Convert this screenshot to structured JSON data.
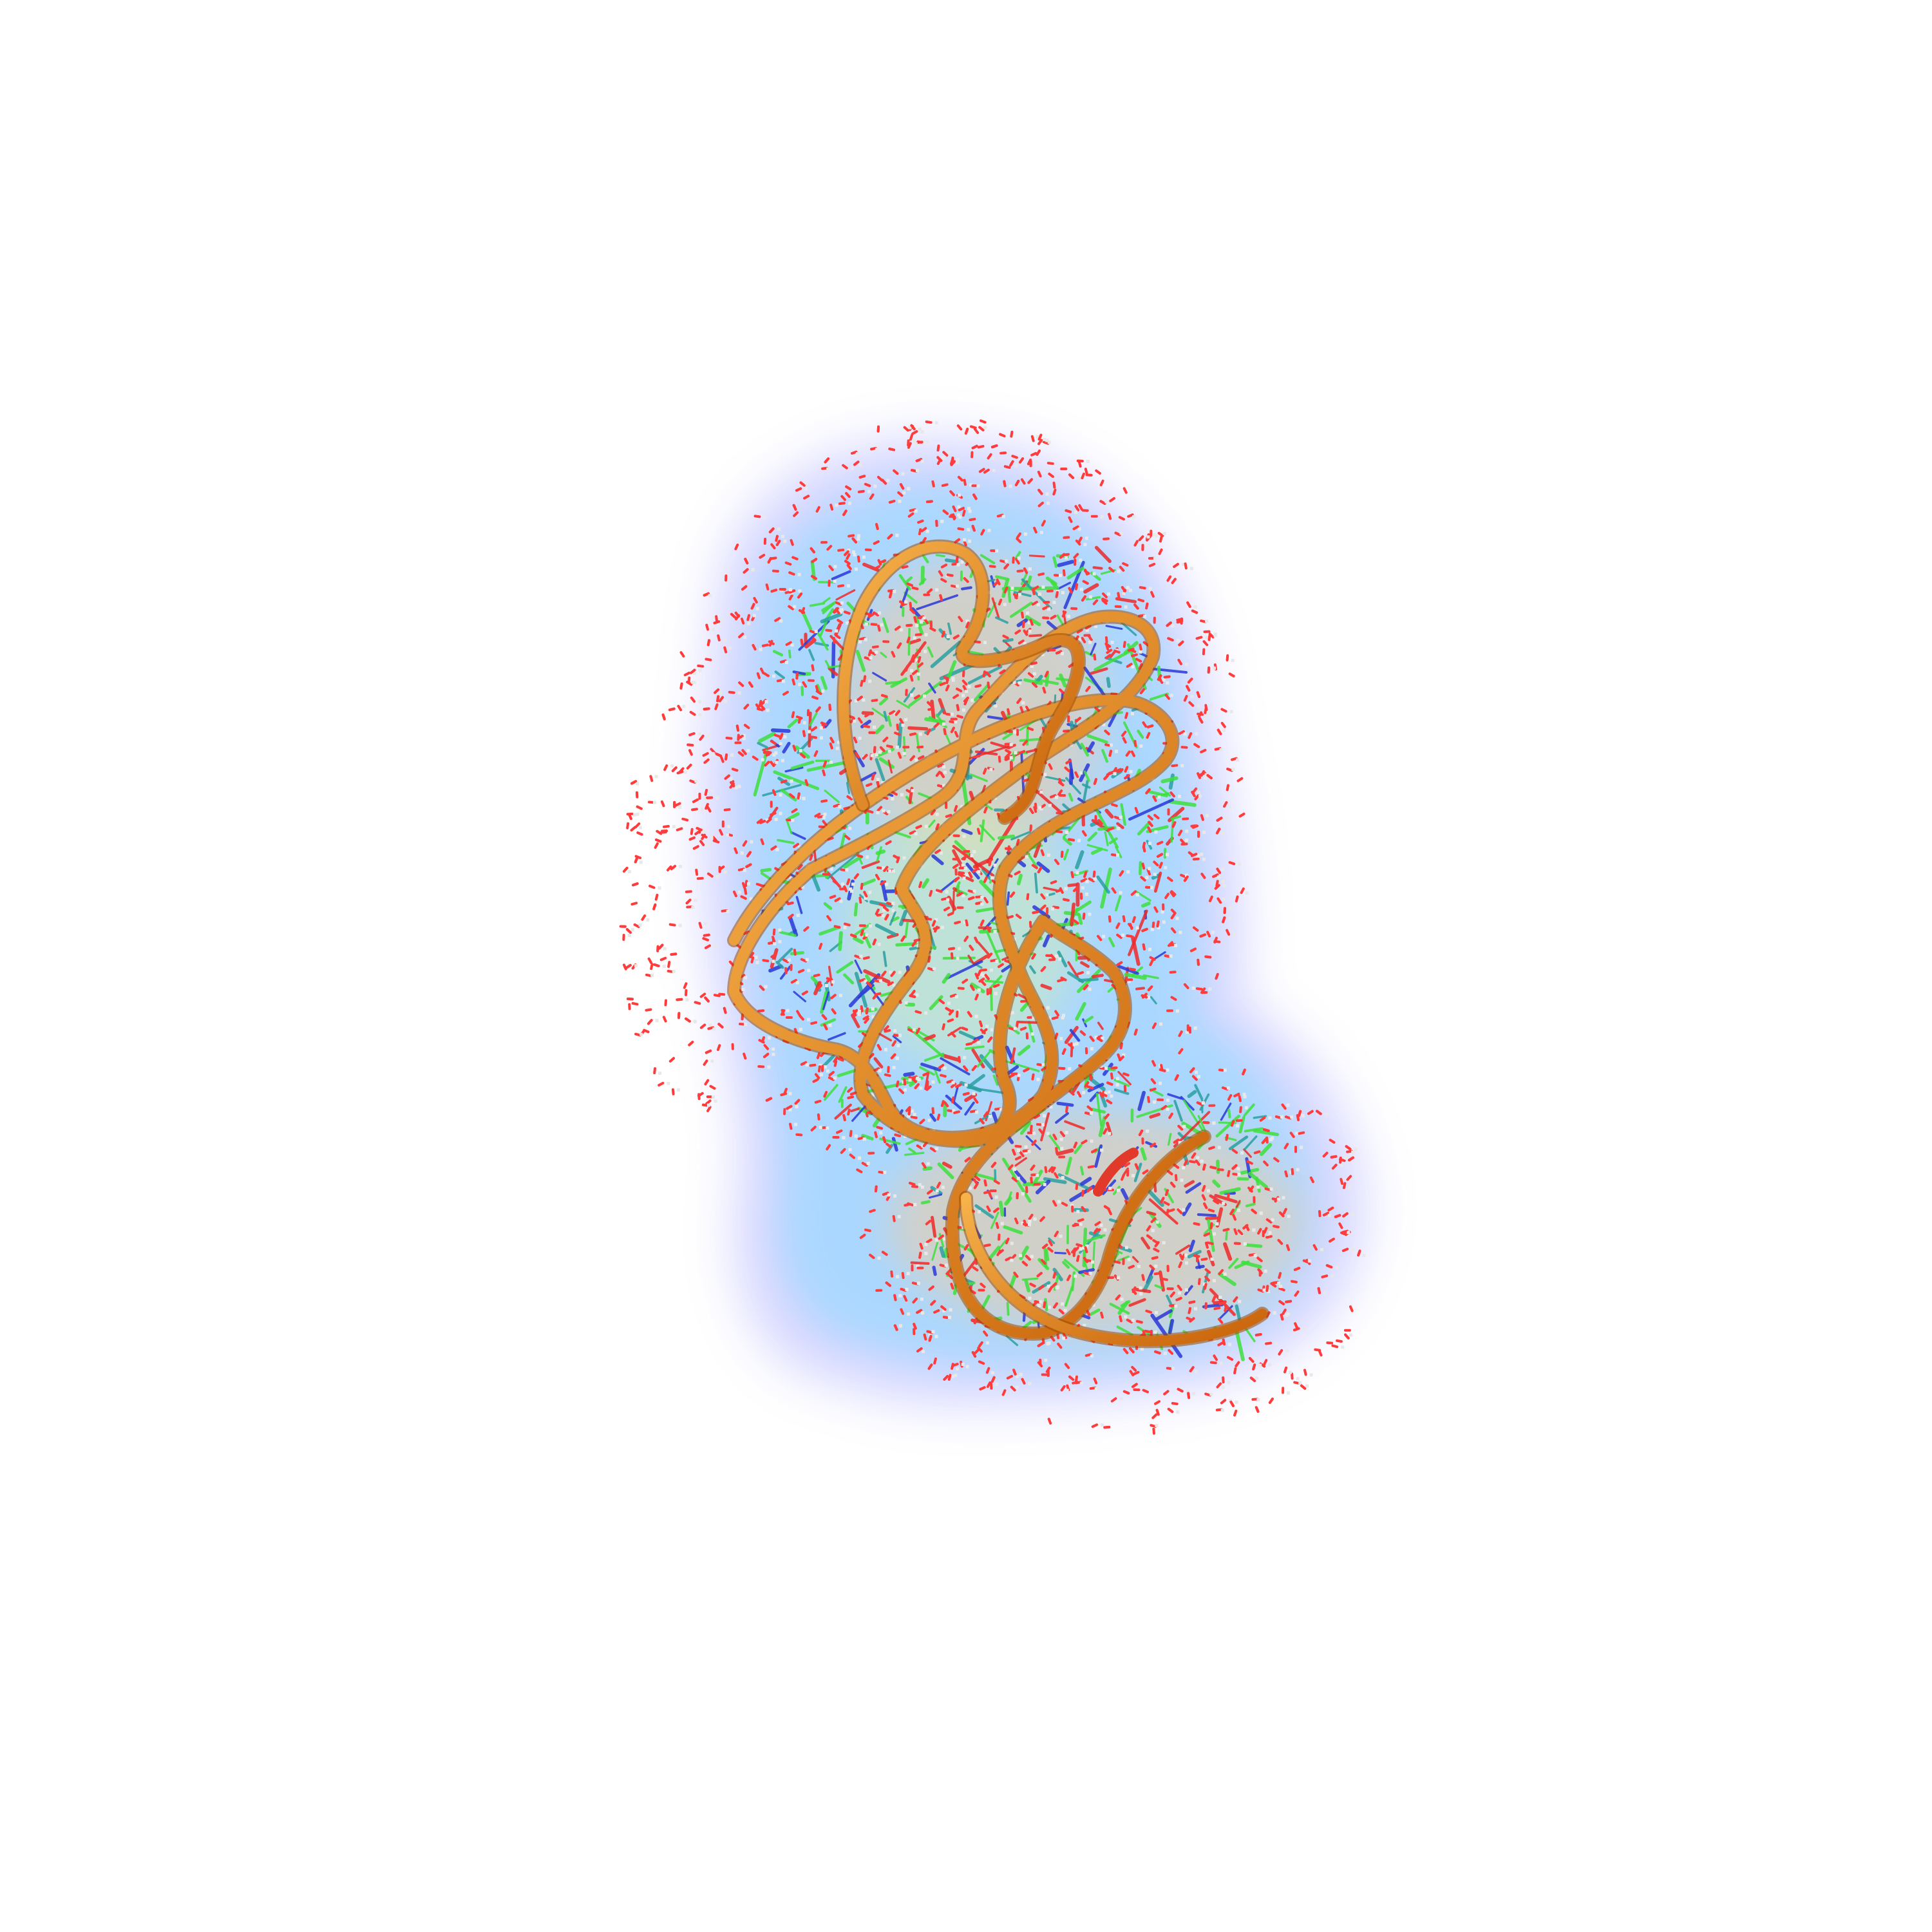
{
  "scene": {
    "background": "#ffffff",
    "subject": "rna-3d-structure-render"
  },
  "colors": {
    "backbone": "#e07a10",
    "backbone_highlight": "#f7b24a",
    "backbone_end": "#e23a2a",
    "carbon": "#3ee03e",
    "nitrogen": "#2a38d8",
    "oxygen": "#ee2a2a",
    "base_rung": "#2aa0a0",
    "water_oxygen": "#ff3b3b",
    "water_hydrogen": "#e8e8e8",
    "surface_outer": "#8f8fff",
    "surface_mid": "#7fd8ff",
    "surface_inner": "#ffc88a"
  },
  "icons": {
    "molecule": "rna-molecule-icon"
  }
}
